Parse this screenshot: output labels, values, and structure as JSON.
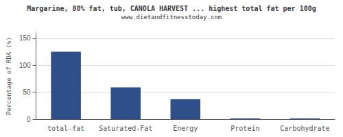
{
  "chart_data": {
    "type": "bar",
    "title": "Margarine, 80% fat, tub, CANOLA HARVEST ... highest total fat per 100g",
    "subtitle": "www.dietandfitnesstoday.com",
    "ylabel": "Percentage of RDA (%)",
    "categories": [
      "total-fat",
      "Saturated-Fat",
      "Energy",
      "Protein",
      "Carbohydrate"
    ],
    "values": [
      125,
      59,
      37,
      1.5,
      1.5
    ],
    "color": "#2e4f8a",
    "ylim": [
      0,
      160
    ],
    "yticks": [
      0,
      50,
      100,
      150
    ],
    "grid": true
  }
}
